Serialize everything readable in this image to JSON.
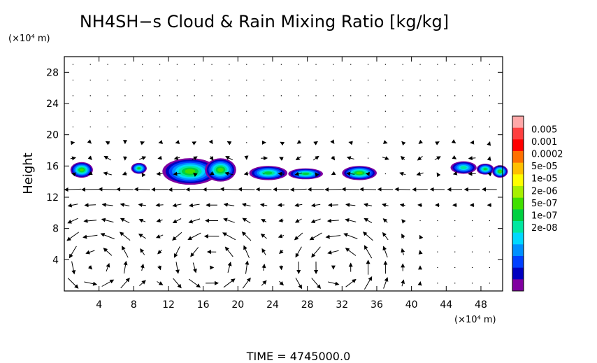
{
  "chart_data": {
    "type": "heatmap",
    "title": "NH4SH−s Cloud & Rain Mixing Ratio [kg/kg]",
    "ylabel": "Height",
    "y_unit": "(×10⁴ m)",
    "x_unit": "(×10⁴ m)",
    "xlim": [
      0,
      50.5
    ],
    "ylim": [
      0,
      30
    ],
    "x_ticks": [
      4,
      8,
      12,
      16,
      20,
      24,
      28,
      32,
      36,
      40,
      44,
      48
    ],
    "y_ticks": [
      4,
      8,
      12,
      16,
      20,
      24,
      28
    ],
    "colorbar": {
      "labels": [
        "0.005",
        "0.001",
        "0.0002",
        "5e-05",
        "1e-05",
        "2e-06",
        "5e-07",
        "1e-07",
        "2e-08"
      ],
      "colors": [
        "#ffa8a8",
        "#ff4040",
        "#ff0000",
        "#ff7000",
        "#ffc000",
        "#ffff00",
        "#a8f000",
        "#40e000",
        "#00d040",
        "#00e8a0",
        "#00d8ff",
        "#0090ff",
        "#0040ff",
        "#0000c0",
        "#8000a0"
      ]
    },
    "cloud_patches": [
      {
        "x": 2.0,
        "y": 15.5,
        "rx": 1.3,
        "ry": 1.0,
        "level": 7
      },
      {
        "x": 8.6,
        "y": 15.7,
        "rx": 0.9,
        "ry": 0.7,
        "level": 6
      },
      {
        "x": 14.5,
        "y": 15.3,
        "rx": 3.2,
        "ry": 1.7,
        "level": 7
      },
      {
        "x": 18.0,
        "y": 15.5,
        "rx": 1.8,
        "ry": 1.5,
        "level": 7
      },
      {
        "x": 23.5,
        "y": 15.1,
        "rx": 2.2,
        "ry": 0.9,
        "level": 6
      },
      {
        "x": 27.8,
        "y": 15.0,
        "rx": 2.0,
        "ry": 0.7,
        "level": 6
      },
      {
        "x": 34.0,
        "y": 15.1,
        "rx": 2.0,
        "ry": 0.9,
        "level": 7
      },
      {
        "x": 46.0,
        "y": 15.8,
        "rx": 1.5,
        "ry": 0.8,
        "level": 5
      },
      {
        "x": 48.5,
        "y": 15.6,
        "rx": 1.0,
        "ry": 0.7,
        "level": 6
      },
      {
        "x": 50.2,
        "y": 15.3,
        "rx": 0.9,
        "ry": 0.8,
        "level": 7
      }
    ],
    "vortex_centers": [
      {
        "x": 3.5,
        "y": 3.5
      },
      {
        "x": 17.0,
        "y": 3.5
      },
      {
        "x": 31.5,
        "y": 3.0
      }
    ],
    "time_label": "TIME  =  4745000.0"
  }
}
